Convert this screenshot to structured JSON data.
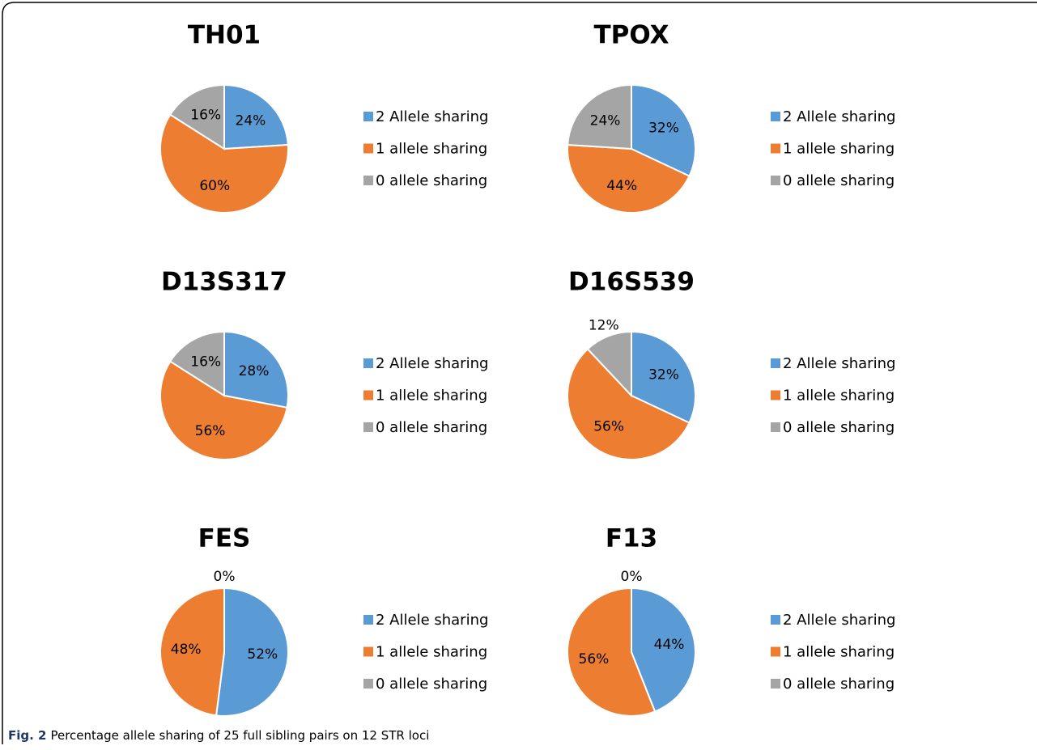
{
  "caption": {
    "label": "Fig. 2",
    "text": "Percentage allele sharing of 25 full sibling pairs on 12 STR loci"
  },
  "chart_data": [
    {
      "type": "pie",
      "title": "TH01",
      "categories": [
        "2 Allele sharing",
        "1 allele sharing",
        "0 allele sharing"
      ],
      "values": [
        24,
        60,
        16
      ],
      "value_labels": [
        "24%",
        "60%",
        "16%"
      ],
      "colors": [
        "#5b9bd5",
        "#ed7d31",
        "#a5a5a5"
      ],
      "legend": "right"
    },
    {
      "type": "pie",
      "title": "TPOX",
      "categories": [
        "2 Allele sharing",
        "1 allele sharing",
        "0 allele sharing"
      ],
      "values": [
        32,
        44,
        24
      ],
      "value_labels": [
        "32%",
        "44%",
        "24%"
      ],
      "colors": [
        "#5b9bd5",
        "#ed7d31",
        "#a5a5a5"
      ],
      "legend": "right"
    },
    {
      "type": "pie",
      "title": "D13S317",
      "categories": [
        "2 Allele sharing",
        "1 allele sharing",
        "0 allele sharing"
      ],
      "values": [
        28,
        56,
        16
      ],
      "value_labels": [
        "28%",
        "56%",
        "16%"
      ],
      "colors": [
        "#5b9bd5",
        "#ed7d31",
        "#a5a5a5"
      ],
      "legend": "right"
    },
    {
      "type": "pie",
      "title": "D16S539",
      "categories": [
        "2 Allele sharing",
        "1 allele sharing",
        "0 allele sharing"
      ],
      "values": [
        32,
        56,
        12
      ],
      "value_labels": [
        "32%",
        "56%",
        "12%"
      ],
      "colors": [
        "#5b9bd5",
        "#ed7d31",
        "#a5a5a5"
      ],
      "legend": "right"
    },
    {
      "type": "pie",
      "title": "FES",
      "categories": [
        "2 Allele sharing",
        "1 allele sharing",
        "0 allele sharing"
      ],
      "values": [
        52,
        48,
        0
      ],
      "value_labels": [
        "52%",
        "48%",
        "0%"
      ],
      "colors": [
        "#5b9bd5",
        "#ed7d31",
        "#a5a5a5"
      ],
      "legend": "right"
    },
    {
      "type": "pie",
      "title": "F13",
      "categories": [
        "2 Allele sharing",
        "1 allele sharing",
        "0 allele sharing"
      ],
      "values": [
        44,
        56,
        0
      ],
      "value_labels": [
        "44%",
        "56%",
        "0%"
      ],
      "colors": [
        "#5b9bd5",
        "#ed7d31",
        "#a5a5a5"
      ],
      "legend": "right"
    }
  ]
}
